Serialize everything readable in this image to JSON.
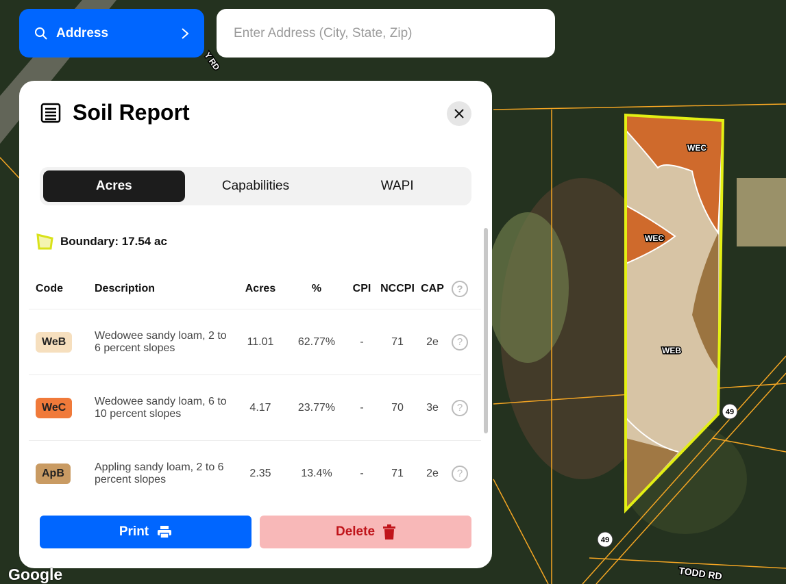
{
  "search": {
    "mode_label": "Address",
    "placeholder": "Enter Address (City, State, Zip)",
    "value": ""
  },
  "panel": {
    "title": "Soil Report",
    "tabs": [
      {
        "label": "Acres",
        "active": true
      },
      {
        "label": "Capabilities",
        "active": false
      },
      {
        "label": "WAPI",
        "active": false
      }
    ],
    "boundary": "Boundary: 17.54 ac",
    "columns": [
      "Code",
      "Description",
      "Acres",
      "%",
      "CPI",
      "NCCPI",
      "CAP"
    ],
    "rows": [
      {
        "code": "WeB",
        "color": "#f6dfbe",
        "description": "Wedowee sandy loam, 2 to 6 percent slopes",
        "acres": "11.01",
        "pct": "62.77%",
        "cpi": "-",
        "nccpi": "71",
        "cap": "2e"
      },
      {
        "code": "WeC",
        "color": "#f07a3a",
        "description": "Wedowee sandy loam, 6 to 10 percent slopes",
        "acres": "4.17",
        "pct": "23.77%",
        "cpi": "-",
        "nccpi": "70",
        "cap": "3e"
      },
      {
        "code": "ApB",
        "color": "#c99b63",
        "description": "Appling sandy loam, 2 to 6 percent slopes",
        "acres": "2.35",
        "pct": "13.4%",
        "cpi": "-",
        "nccpi": "71",
        "cap": "2e"
      }
    ],
    "print_label": "Print",
    "delete_label": "Delete"
  },
  "map": {
    "labels": {
      "wec1": "WEC",
      "wec2": "WEC",
      "web": "WEB",
      "route1": "49",
      "route2": "49",
      "todd": "TODD RD",
      "road1": "Y RD"
    },
    "attribution": "Google"
  }
}
